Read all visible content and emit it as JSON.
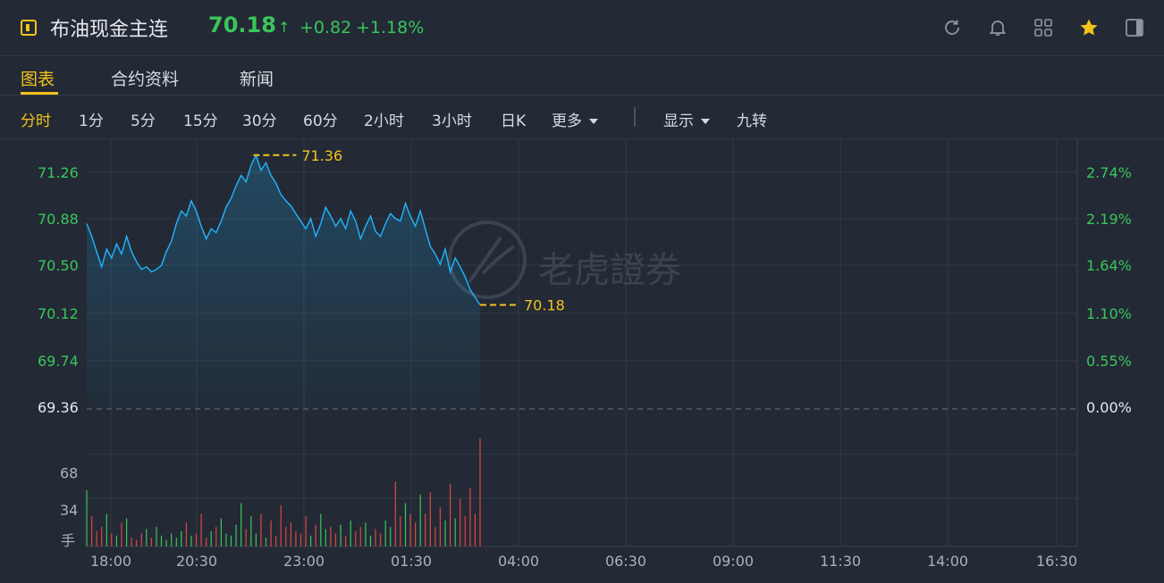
{
  "header": {
    "title": "布油现金主连",
    "price": "70.18",
    "arrow": "↑",
    "change": "+0.82",
    "change_pct": "+1.18%",
    "icons": [
      "refresh-icon",
      "bell-icon",
      "grid-icon",
      "star-icon",
      "panel-icon"
    ]
  },
  "tabs": [
    {
      "label": "图表",
      "active": true
    },
    {
      "label": "合约资料",
      "active": false
    },
    {
      "label": "新闻",
      "active": false
    }
  ],
  "timeframes": [
    "分时",
    "1分",
    "5分",
    "15分",
    "30分",
    "60分",
    "2小时",
    "3小时",
    "日K",
    "更多"
  ],
  "toolbar": {
    "display_label": "显示",
    "jiuzhuan_label": "九转"
  },
  "colors": {
    "accent": "#f4c21b",
    "up": "#3ac55c",
    "down": "#e04545",
    "line": "#1fb6ff",
    "bg": "#232a35"
  },
  "watermark": "老虎證券",
  "chart_data": {
    "type": "line",
    "x_tick_labels": [
      "18:00",
      "20:30",
      "23:00",
      "01:30",
      "04:00",
      "06:30",
      "09:00",
      "11:30",
      "14:00",
      "16:30"
    ],
    "y_tick_labels": [
      "71.26",
      "70.88",
      "70.50",
      "70.12",
      "69.74",
      "69.36"
    ],
    "pct_tick_labels": [
      "2.74%",
      "2.19%",
      "1.64%",
      "1.10%",
      "0.55%",
      "0.00%"
    ],
    "ylim": [
      69.36,
      71.45
    ],
    "prev_close": 69.36,
    "high_label": "71.36",
    "last_label": "70.18",
    "series": [
      {
        "values": [
          70.82,
          70.72,
          70.6,
          70.48,
          70.62,
          70.55,
          70.66,
          70.58,
          70.72,
          70.6,
          70.52,
          70.46,
          70.48,
          70.44,
          70.46,
          70.49,
          70.6,
          70.68,
          70.82,
          70.92,
          70.88,
          71.0,
          70.92,
          70.8,
          70.7,
          70.78,
          70.75,
          70.84,
          70.95,
          71.02,
          71.12,
          71.2,
          71.15,
          71.28,
          71.36,
          71.24,
          71.3,
          71.2,
          71.14,
          71.05,
          71.0,
          70.96,
          70.9,
          70.84,
          70.78,
          70.86,
          70.72,
          70.82,
          70.95,
          70.88,
          70.8,
          70.86,
          70.78,
          70.92,
          70.84,
          70.7,
          70.8,
          70.88,
          70.76,
          70.72,
          70.82,
          70.9,
          70.86,
          70.84,
          70.98,
          70.88,
          70.8,
          70.92,
          70.78,
          70.64,
          70.58,
          70.5,
          70.62,
          70.44,
          70.55,
          70.48,
          70.4,
          70.3,
          70.24,
          70.18
        ]
      }
    ],
    "volume": {
      "y_tick_labels": [
        "68",
        "34"
      ],
      "unit_label": "手",
      "max": 100,
      "values": [
        52,
        28,
        14,
        18,
        30,
        12,
        10,
        22,
        26,
        8,
        6,
        12,
        16,
        8,
        18,
        10,
        6,
        12,
        8,
        14,
        22,
        10,
        12,
        30,
        8,
        14,
        18,
        26,
        12,
        10,
        20,
        40,
        16,
        28,
        12,
        30,
        8,
        24,
        10,
        38,
        18,
        22,
        14,
        12,
        28,
        10,
        20,
        30,
        16,
        18,
        12,
        20,
        10,
        24,
        14,
        18,
        22,
        10,
        16,
        12,
        24,
        18,
        60,
        28,
        40,
        30,
        22,
        48,
        30,
        50,
        18,
        36,
        24,
        58,
        26,
        44,
        28,
        54,
        30,
        100
      ]
    }
  }
}
